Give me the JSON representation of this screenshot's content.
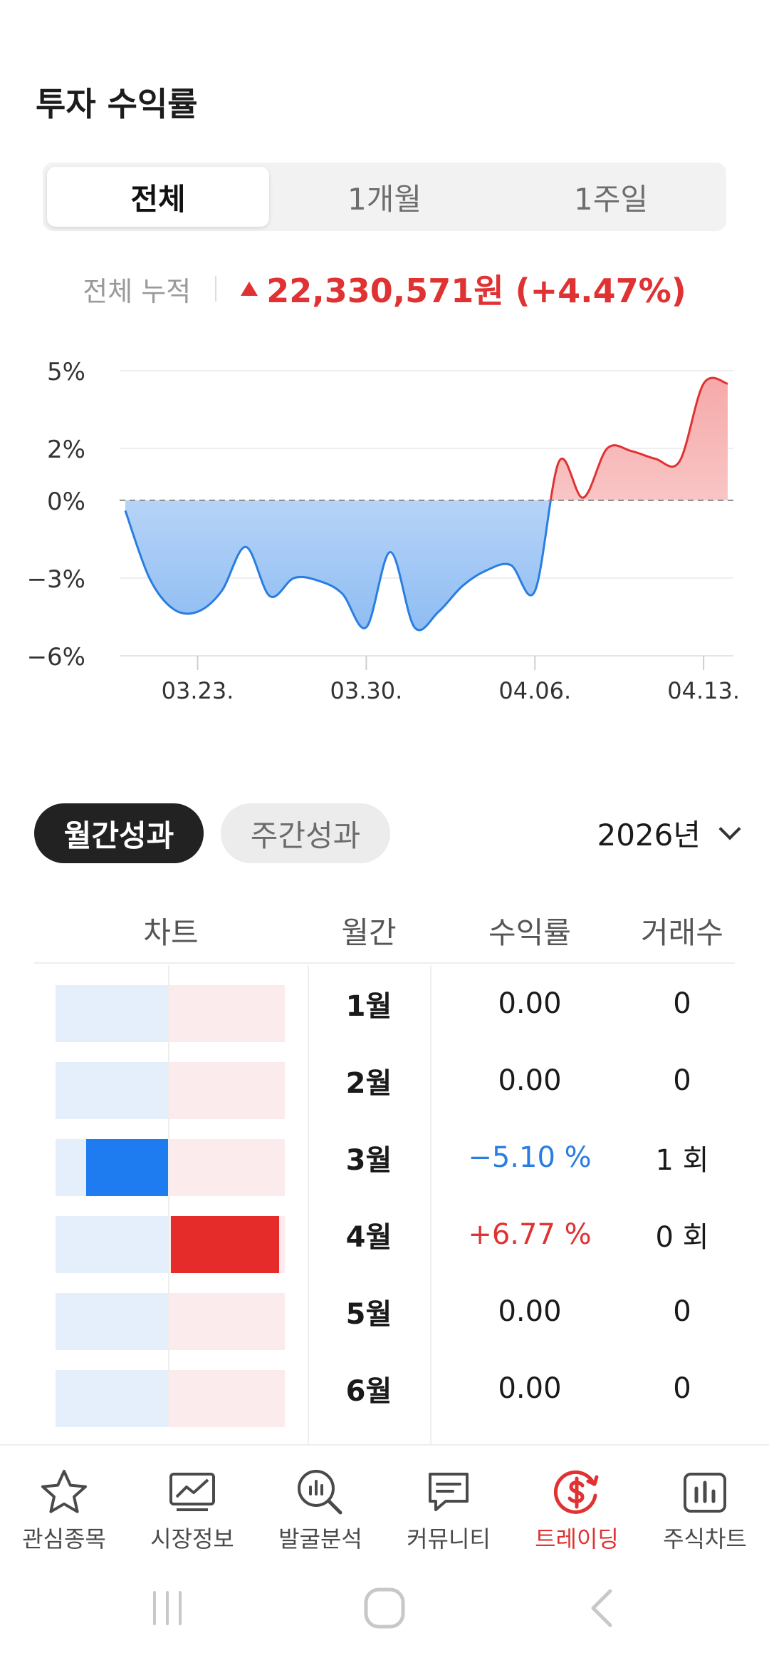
{
  "header": {
    "title": "투자 수익률"
  },
  "period_tabs": [
    {
      "label": "전체",
      "active": true
    },
    {
      "label": "1개월",
      "active": false
    },
    {
      "label": "1주일",
      "active": false
    }
  ],
  "summary": {
    "label": "전체 누적",
    "value": "22,330,571원 (+4.47%)",
    "direction": "up"
  },
  "chart_data": {
    "type": "area",
    "y_ticks": [
      "5%",
      "2%",
      "0%",
      "−3%",
      "−6%"
    ],
    "ylim": [
      -6,
      5
    ],
    "x_ticks": [
      "03.23.",
      "03.30.",
      "04.06.",
      "04.13."
    ],
    "baseline": 0,
    "colors": {
      "negative": "#2a7de1",
      "positive": "#e03232"
    },
    "series": [
      {
        "x": [
          "03.20.",
          "03.21.",
          "03.22.",
          "03.23.",
          "03.24.",
          "03.25.",
          "03.26.",
          "03.27.",
          "03.28.",
          "03.29.",
          "03.30.",
          "03.31.",
          "04.01.",
          "04.02.",
          "04.03.",
          "04.04.",
          "04.05.",
          "04.06.",
          "04.07.",
          "04.08.",
          "04.09.",
          "04.10.",
          "04.11.",
          "04.12.",
          "04.13.",
          "04.14."
        ],
        "values": [
          -0.4,
          -3.0,
          -4.2,
          -4.3,
          -3.5,
          -1.8,
          -3.7,
          -3.0,
          -3.1,
          -3.6,
          -4.9,
          -2.0,
          -4.9,
          -4.3,
          -3.3,
          -2.7,
          -2.5,
          -3.5,
          1.5,
          0.1,
          2.0,
          1.9,
          1.6,
          1.5,
          4.5,
          4.5
        ]
      }
    ]
  },
  "perf_tabs": [
    {
      "label": "월간성과",
      "active": true
    },
    {
      "label": "주간성과",
      "active": false
    }
  ],
  "year_select": {
    "label": "2026년"
  },
  "table": {
    "headers": [
      "차트",
      "월간",
      "수익률",
      "거래수"
    ],
    "rows": [
      {
        "month": "1월",
        "return": "0.00",
        "trades": "0",
        "value": 0
      },
      {
        "month": "2월",
        "return": "0.00",
        "trades": "0",
        "value": 0
      },
      {
        "month": "3월",
        "return": "−5.10 %",
        "trades": "1 회",
        "value": -5.1
      },
      {
        "month": "4월",
        "return": "+6.77 %",
        "trades": "0 회",
        "value": 6.77
      },
      {
        "month": "5월",
        "return": "0.00",
        "trades": "0",
        "value": 0
      },
      {
        "month": "6월",
        "return": "0.00",
        "trades": "0",
        "value": 0
      }
    ]
  },
  "bottom_nav": [
    {
      "label": "관심종목",
      "icon": "star-icon",
      "active": false
    },
    {
      "label": "시장정보",
      "icon": "market-chart-icon",
      "active": false
    },
    {
      "label": "발굴분석",
      "icon": "analysis-search-icon",
      "active": false
    },
    {
      "label": "커뮤니티",
      "icon": "chat-bubble-icon",
      "active": false
    },
    {
      "label": "트레이딩",
      "icon": "trading-dollar-icon",
      "active": true
    },
    {
      "label": "주식차트",
      "icon": "bar-chart-icon",
      "active": false
    }
  ],
  "system_nav": [
    {
      "icon": "recent-apps-icon"
    },
    {
      "icon": "home-icon"
    },
    {
      "icon": "back-icon"
    }
  ]
}
